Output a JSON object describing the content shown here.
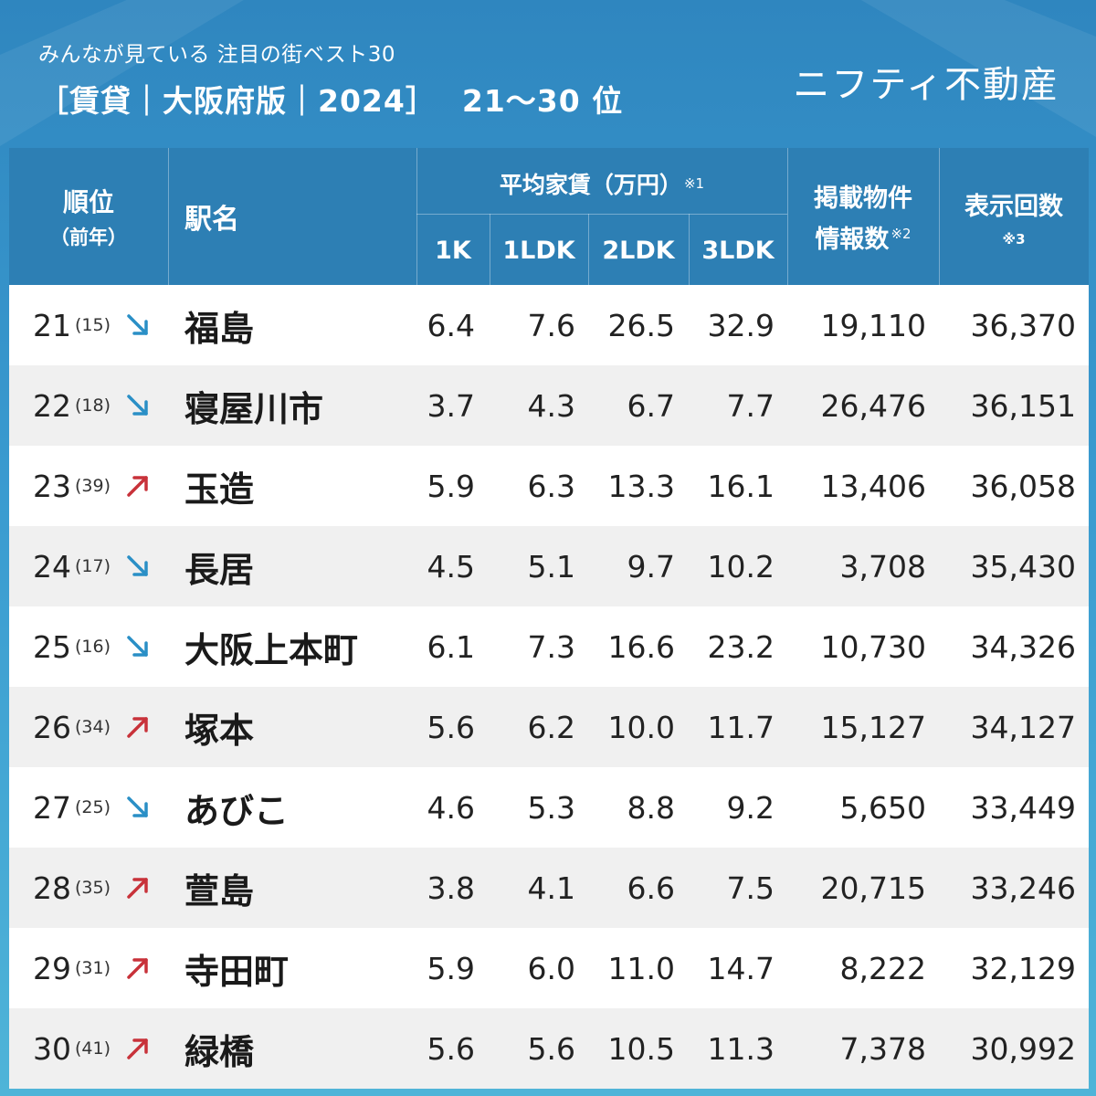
{
  "header": {
    "subtitle": "みんなが見ている 注目の街ベスト30",
    "title": "［賃貸｜大阪府版｜2024］",
    "rank_range": "21〜30 位",
    "brand": "ニフティ不動産"
  },
  "columns": {
    "rank": "順位",
    "prev": "（前年）",
    "station": "駅名",
    "avg_rent": "平均家賃（万円）",
    "avg_rent_note": "※1",
    "k1": "1K",
    "ldk1": "1LDK",
    "ldk2": "2LDK",
    "ldk3": "3LDK",
    "listings_line1": "掲載物件",
    "listings_line2": "情報数",
    "listings_note": "※2",
    "views": "表示回数",
    "views_note": "※3"
  },
  "colors": {
    "down": "#2a8fc6",
    "up": "#c8323a",
    "header": "#2d7fb4"
  },
  "chart_data": {
    "type": "table",
    "columns": [
      "順位",
      "前年",
      "駅名",
      "1K",
      "1LDK",
      "2LDK",
      "3LDK",
      "掲載物件情報数",
      "表示回数"
    ],
    "rows": [
      {
        "rank": "21",
        "prev": "(15)",
        "trend": "down",
        "station": "福島",
        "k1": "6.4",
        "ldk1": "7.6",
        "ldk2": "26.5",
        "ldk3": "32.9",
        "listings": "19,110",
        "views": "36,370"
      },
      {
        "rank": "22",
        "prev": "(18)",
        "trend": "down",
        "station": "寝屋川市",
        "k1": "3.7",
        "ldk1": "4.3",
        "ldk2": "6.7",
        "ldk3": "7.7",
        "listings": "26,476",
        "views": "36,151"
      },
      {
        "rank": "23",
        "prev": "(39)",
        "trend": "up",
        "station": "玉造",
        "k1": "5.9",
        "ldk1": "6.3",
        "ldk2": "13.3",
        "ldk3": "16.1",
        "listings": "13,406",
        "views": "36,058"
      },
      {
        "rank": "24",
        "prev": "(17)",
        "trend": "down",
        "station": "長居",
        "k1": "4.5",
        "ldk1": "5.1",
        "ldk2": "9.7",
        "ldk3": "10.2",
        "listings": "3,708",
        "views": "35,430"
      },
      {
        "rank": "25",
        "prev": "(16)",
        "trend": "down",
        "station": "大阪上本町",
        "k1": "6.1",
        "ldk1": "7.3",
        "ldk2": "16.6",
        "ldk3": "23.2",
        "listings": "10,730",
        "views": "34,326"
      },
      {
        "rank": "26",
        "prev": "(34)",
        "trend": "up",
        "station": "塚本",
        "k1": "5.6",
        "ldk1": "6.2",
        "ldk2": "10.0",
        "ldk3": "11.7",
        "listings": "15,127",
        "views": "34,127"
      },
      {
        "rank": "27",
        "prev": "(25)",
        "trend": "down",
        "station": "あびこ",
        "k1": "4.6",
        "ldk1": "5.3",
        "ldk2": "8.8",
        "ldk3": "9.2",
        "listings": "5,650",
        "views": "33,449"
      },
      {
        "rank": "28",
        "prev": "(35)",
        "trend": "up",
        "station": "萱島",
        "k1": "3.8",
        "ldk1": "4.1",
        "ldk2": "6.6",
        "ldk3": "7.5",
        "listings": "20,715",
        "views": "33,246"
      },
      {
        "rank": "29",
        "prev": "(31)",
        "trend": "up",
        "station": "寺田町",
        "k1": "5.9",
        "ldk1": "6.0",
        "ldk2": "11.0",
        "ldk3": "14.7",
        "listings": "8,222",
        "views": "32,129"
      },
      {
        "rank": "30",
        "prev": "(41)",
        "trend": "up",
        "station": "緑橋",
        "k1": "5.6",
        "ldk1": "5.6",
        "ldk2": "10.5",
        "ldk3": "11.3",
        "listings": "7,378",
        "views": "30,992"
      }
    ]
  }
}
